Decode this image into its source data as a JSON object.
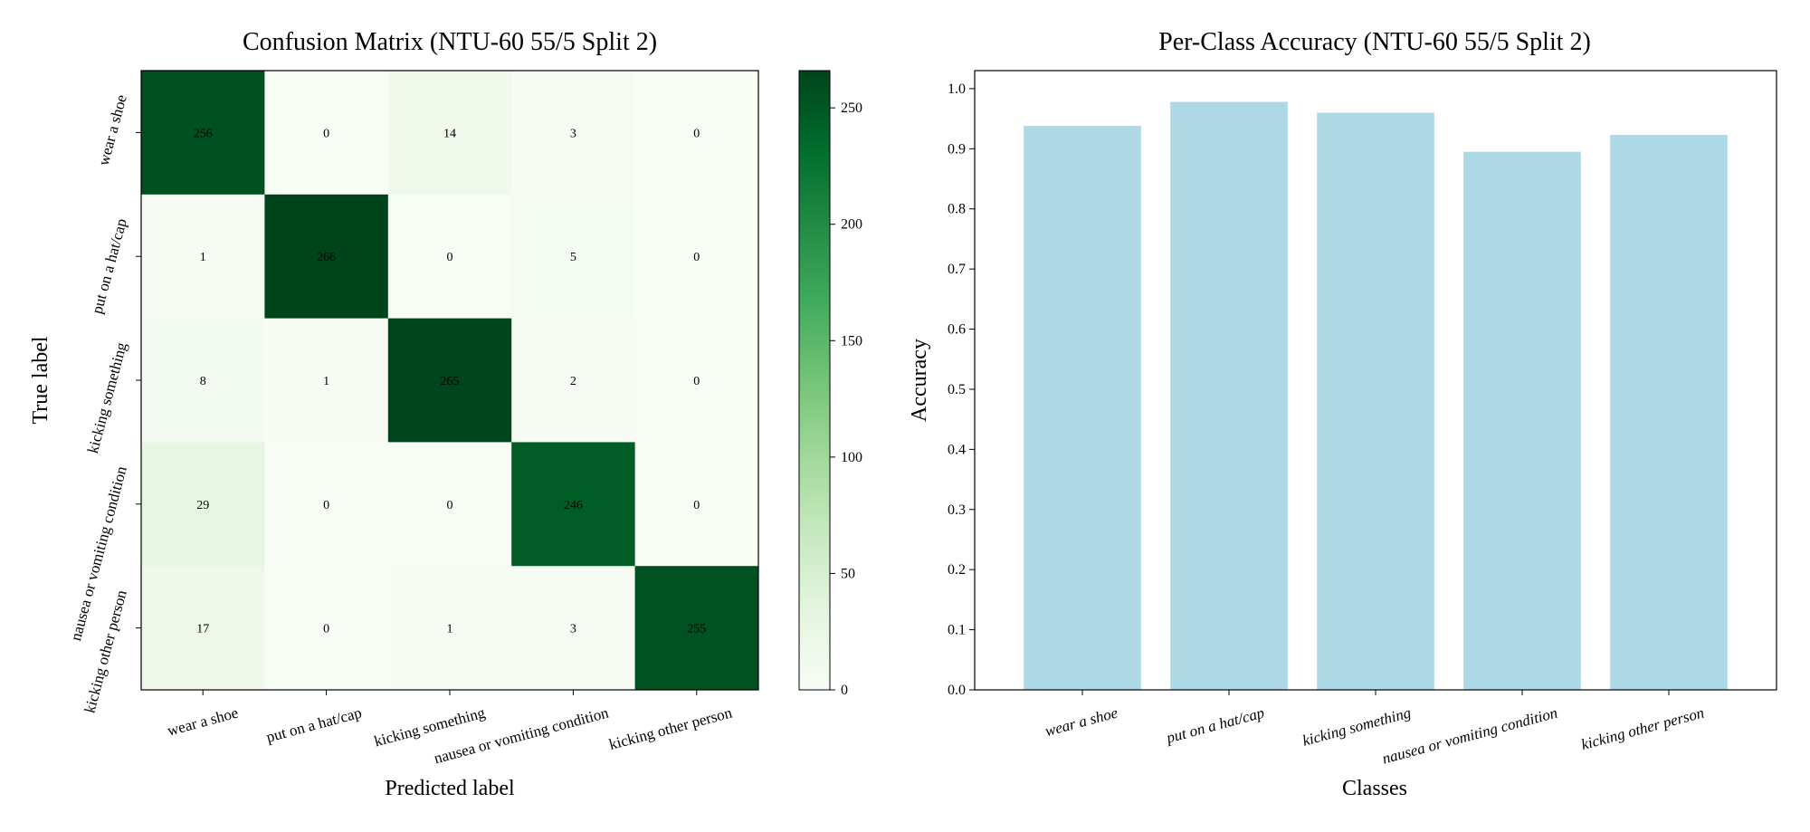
{
  "chart_data": [
    {
      "type": "heatmap",
      "title": "Confusion Matrix (NTU-60 55/5 Split 2)",
      "xlabel": "Predicted label",
      "ylabel": "True label",
      "x_categories": [
        "wear a shoe",
        "put on a hat/cap",
        "kicking something",
        "nausea or vomiting condition",
        "kicking other person"
      ],
      "y_categories": [
        "wear a shoe",
        "put on a hat/cap",
        "kicking something",
        "nausea or vomiting condition",
        "kicking other person"
      ],
      "values": [
        [
          256,
          0,
          14,
          3,
          0
        ],
        [
          1,
          266,
          0,
          5,
          0
        ],
        [
          8,
          1,
          265,
          2,
          0
        ],
        [
          29,
          0,
          0,
          246,
          0
        ],
        [
          17,
          0,
          1,
          3,
          255
        ]
      ],
      "colorscale": "Greens",
      "colorbar": {
        "range": [
          0,
          266
        ],
        "ticks": [
          0,
          50,
          100,
          150,
          200,
          250
        ]
      },
      "colors": {
        "low": "#f7fcf5",
        "high": "#00441b"
      }
    },
    {
      "type": "bar",
      "title": "Per-Class Accuracy (NTU-60 55/5 Split 2)",
      "xlabel": "Classes",
      "ylabel": "Accuracy",
      "categories": [
        "wear a shoe",
        "put on a hat/cap",
        "kicking something",
        "nausea or vomiting condition",
        "kicking other person"
      ],
      "values": [
        0.938,
        0.978,
        0.96,
        0.895,
        0.923
      ],
      "ylim": [
        0.0,
        1.03
      ],
      "yticks": [
        "0.0",
        "0.1",
        "0.2",
        "0.3",
        "0.4",
        "0.5",
        "0.6",
        "0.7",
        "0.8",
        "0.9",
        "1.0"
      ],
      "bar_color": "#add8e6"
    }
  ]
}
